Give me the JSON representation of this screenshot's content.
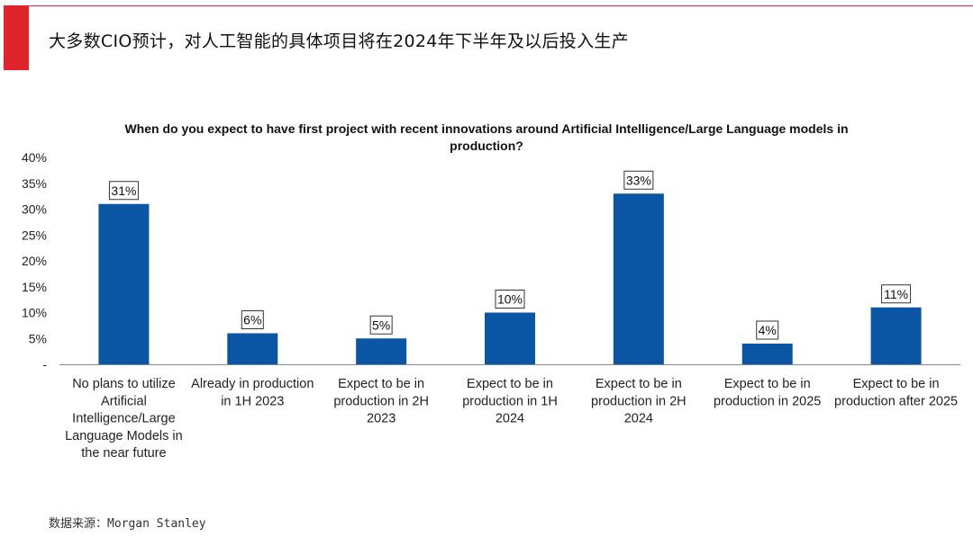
{
  "slide": {
    "title": "大多数CIO预计，对人工智能的具体项目将在2024年下半年及以后投入生产",
    "accent_color": "#e0242b",
    "source": "数据来源：Morgan Stanley"
  },
  "chart_data": {
    "type": "bar",
    "title": "When do you expect to have first project with recent innovations around Artificial Intelligence/Large Language models in production?",
    "title_lines": [
      "When do you expect to have first project with recent innovations around Artificial Intelligence/Large Language models in",
      "production?"
    ],
    "categories": [
      "No plans to utilize Artificial Intelligence/Large Language Models in the near future",
      "Already in production in 1H 2023",
      "Expect to be in production in 2H 2023",
      "Expect to be in production in 1H 2024",
      "Expect to be in production in 2H 2024",
      "Expect to be in production in 2025",
      "Expect to be in production after 2025"
    ],
    "category_lines": [
      [
        "No plans to utilize",
        "Artificial",
        "Intelligence/Large",
        "Language Models in",
        "the near future"
      ],
      [
        "Already in production",
        "in 1H 2023"
      ],
      [
        "Expect to be in",
        "production in 2H",
        "2023"
      ],
      [
        "Expect to be in",
        "production in 1H",
        "2024"
      ],
      [
        "Expect to be in",
        "production in 2H",
        "2024"
      ],
      [
        "Expect to be in",
        "production in 2025"
      ],
      [
        "Expect to be in",
        "production after 2025"
      ]
    ],
    "values": [
      31,
      6,
      5,
      10,
      33,
      4,
      11
    ],
    "data_labels": [
      "31%",
      "6%",
      "5%",
      "10%",
      "33%",
      "4%",
      "11%"
    ],
    "xlabel": "",
    "ylabel": "",
    "ylim": [
      0,
      40
    ],
    "yticks": [
      0,
      5,
      10,
      15,
      20,
      25,
      30,
      35,
      40
    ],
    "ytick_labels": [
      "-",
      "5%",
      "10%",
      "15%",
      "20%",
      "25%",
      "30%",
      "35%",
      "40%"
    ],
    "bar_color": "#0a56a4",
    "grid": false,
    "legend": "none"
  }
}
